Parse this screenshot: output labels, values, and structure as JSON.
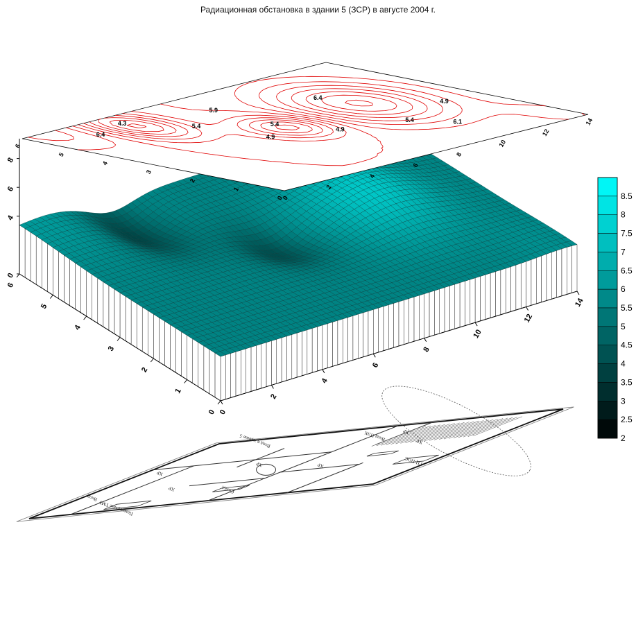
{
  "title": "Радиационная обстановка в здании 5 (ЗСР) в августе 2004 г.",
  "chart_data": {
    "type": "surface",
    "title": "Радиационная обстановка в здании 5 (ЗСР) в августе 2004 г.",
    "x_ticks": [
      "0",
      "2",
      "4",
      "6",
      "8",
      "10",
      "12",
      "14"
    ],
    "y_ticks": [
      "0",
      "1",
      "2",
      "3",
      "4",
      "5",
      "6"
    ],
    "z_ticks": [
      "0",
      "4",
      "6",
      "8"
    ],
    "xlim": [
      0,
      14
    ],
    "ylim": [
      0,
      6
    ],
    "zlim": [
      0,
      8
    ],
    "contour_labels": [
      "6.4",
      "4.3",
      "5.4",
      "4.9",
      "5.9",
      "5.4",
      "4.9",
      "5.4",
      "6.4",
      "6.1",
      "4.9"
    ],
    "colorbar": {
      "min": 2,
      "max": 9,
      "labels": [
        "8.5",
        "8",
        "7.5",
        "7",
        "6.5",
        "6",
        "5.5",
        "5",
        "4.5",
        "4",
        "3.5",
        "3",
        "2.5",
        "2"
      ],
      "color_low": "#000000",
      "color_high": "#00ffff"
    },
    "contour_color": "#e00000"
  },
  "plan": {
    "labels": [
      "Вход ПЭХ",
      "Вход в здание 5",
      "ГЦ-ПОС",
      "Склад",
      "Вход",
      "Помещение ТМУ",
      "ХР",
      "ХР",
      "ХР",
      "ХР",
      "ХР",
      "ХР"
    ]
  }
}
